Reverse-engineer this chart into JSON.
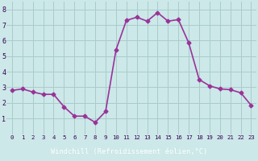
{
  "x": [
    0,
    1,
    2,
    3,
    4,
    5,
    6,
    7,
    8,
    9,
    10,
    11,
    12,
    13,
    14,
    15,
    16,
    17,
    18,
    19,
    20,
    21,
    22,
    23
  ],
  "y": [
    2.8,
    2.9,
    2.7,
    2.55,
    2.55,
    1.75,
    1.15,
    1.15,
    0.75,
    1.45,
    5.4,
    7.3,
    7.5,
    7.25,
    7.8,
    7.25,
    7.35,
    5.85,
    3.5,
    3.1,
    2.9,
    2.85,
    2.65,
    1.85
  ],
  "line_color": "#993399",
  "marker": "D",
  "markersize": 2.5,
  "bg_color": "#cce8e8",
  "grid_color": "#aacccc",
  "xlabel": "Windchill (Refroidissement éolien,°C)",
  "xlabel_bg": "#6644aa",
  "xlabel_color": "#ffffff",
  "ylim": [
    0,
    8.5
  ],
  "xlim": [
    -0.5,
    23.5
  ],
  "yticks": [
    1,
    2,
    3,
    4,
    5,
    6,
    7,
    8
  ],
  "xticks": [
    0,
    1,
    2,
    3,
    4,
    5,
    6,
    7,
    8,
    9,
    10,
    11,
    12,
    13,
    14,
    15,
    16,
    17,
    18,
    19,
    20,
    21,
    22,
    23
  ],
  "tick_label_color": "#330055",
  "linewidth": 1.2,
  "tick_fontsize": 5.2,
  "ytick_fontsize": 6.0
}
